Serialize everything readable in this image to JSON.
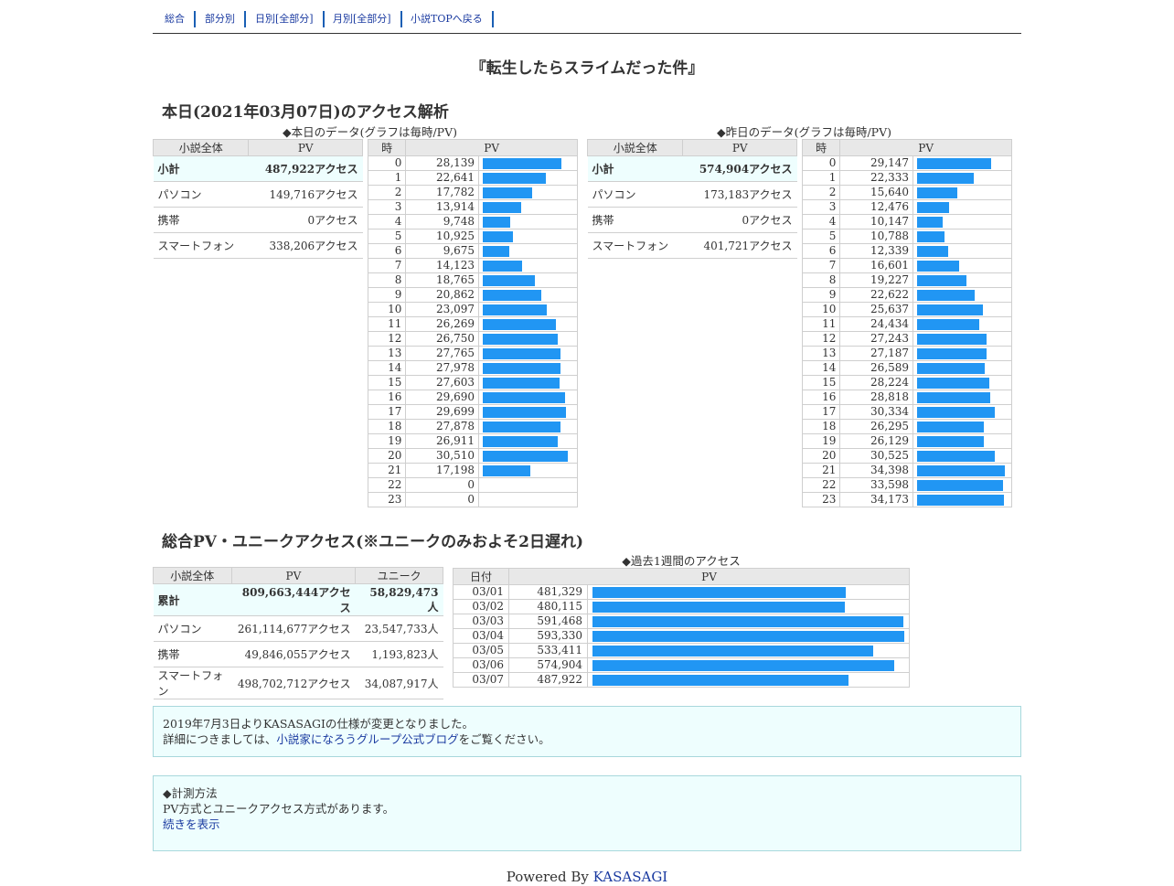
{
  "nav": {
    "items": [
      "総合",
      "部分別",
      "日別[全部分]",
      "月別[全部分]",
      "小説TOPへ戻る"
    ]
  },
  "novel_title": "『転生したらスライムだった件』",
  "today": {
    "section_title": "本日(2021年03月07日)のアクセス解析",
    "today_caption": "◆本日のデータ(グラフは毎時/PV)",
    "yesterday_caption": "◆昨日のデータ(グラフは毎時/PV)",
    "summary_headers": [
      "小説全体",
      "PV"
    ],
    "hourly_headers": [
      "時",
      "PV"
    ],
    "today_summary": [
      {
        "label": "小計",
        "value": "487,922アクセス"
      },
      {
        "label": "パソコン",
        "value": "149,716アクセス"
      },
      {
        "label": "携帯",
        "value": "0アクセス"
      },
      {
        "label": "スマートフォン",
        "value": "338,206アクセス"
      }
    ],
    "yesterday_summary": [
      {
        "label": "小計",
        "value": "574,904アクセス"
      },
      {
        "label": "パソコン",
        "value": "173,183アクセス"
      },
      {
        "label": "携帯",
        "value": "0アクセス"
      },
      {
        "label": "スマートフォン",
        "value": "401,721アクセス"
      }
    ]
  },
  "chart_data": [
    {
      "type": "bar",
      "title": "◆本日のデータ(グラフは毎時/PV)",
      "xlabel": "時",
      "ylabel": "PV",
      "categories": [
        "0",
        "1",
        "2",
        "3",
        "4",
        "5",
        "6",
        "7",
        "8",
        "9",
        "10",
        "11",
        "12",
        "13",
        "14",
        "15",
        "16",
        "17",
        "18",
        "19",
        "20",
        "21",
        "22",
        "23"
      ],
      "labels": [
        "28,139",
        "22,641",
        "17,782",
        "13,914",
        "9,748",
        "10,925",
        "9,675",
        "14,123",
        "18,765",
        "20,862",
        "23,097",
        "26,269",
        "26,750",
        "27,765",
        "27,978",
        "27,603",
        "29,690",
        "29,699",
        "27,878",
        "26,911",
        "30,510",
        "17,198",
        "0",
        "0"
      ],
      "values": [
        28139,
        22641,
        17782,
        13914,
        9748,
        10925,
        9675,
        14123,
        18765,
        20862,
        23097,
        26269,
        26750,
        27765,
        27978,
        27603,
        29690,
        29699,
        27878,
        26911,
        30510,
        17198,
        0,
        0
      ],
      "max": 31500
    },
    {
      "type": "bar",
      "title": "◆昨日のデータ(グラフは毎時/PV)",
      "xlabel": "時",
      "ylabel": "PV",
      "categories": [
        "0",
        "1",
        "2",
        "3",
        "4",
        "5",
        "6",
        "7",
        "8",
        "9",
        "10",
        "11",
        "12",
        "13",
        "14",
        "15",
        "16",
        "17",
        "18",
        "19",
        "20",
        "21",
        "22",
        "23"
      ],
      "labels": [
        "29,147",
        "22,333",
        "15,640",
        "12,476",
        "10,147",
        "10,788",
        "12,339",
        "16,601",
        "19,227",
        "22,622",
        "25,637",
        "24,434",
        "27,243",
        "27,187",
        "26,589",
        "28,224",
        "28,818",
        "30,334",
        "26,295",
        "26,129",
        "30,525",
        "34,398",
        "33,598",
        "34,173"
      ],
      "values": [
        29147,
        22333,
        15640,
        12476,
        10147,
        10788,
        12339,
        16601,
        19227,
        22622,
        25637,
        24434,
        27243,
        27187,
        26589,
        28224,
        28818,
        30334,
        26295,
        26129,
        30525,
        34398,
        33598,
        34173
      ],
      "max": 34398
    },
    {
      "type": "bar",
      "title": "◆過去1週間のアクセス",
      "xlabel": "日付",
      "ylabel": "PV",
      "categories": [
        "03/01",
        "03/02",
        "03/03",
        "03/04",
        "03/05",
        "03/06",
        "03/07"
      ],
      "labels": [
        "481,329",
        "480,115",
        "591,468",
        "593,330",
        "533,411",
        "574,904",
        "487,922"
      ],
      "values": [
        481329,
        480115,
        591468,
        593330,
        533411,
        574904,
        487922
      ],
      "max": 593330
    }
  ],
  "totals": {
    "section_title": "総合PV・ユニークアクセス(※ユニークのみおよそ2日遅れ)",
    "headers": [
      "小説全体",
      "PV",
      "ユニーク"
    ],
    "rows": [
      {
        "label": "累計",
        "pv": "809,663,444アクセス",
        "unique": "58,829,473人"
      },
      {
        "label": "パソコン",
        "pv": "261,114,677アクセス",
        "unique": "23,547,733人"
      },
      {
        "label": "携帯",
        "pv": "49,846,055アクセス",
        "unique": "1,193,823人"
      },
      {
        "label": "スマートフォン",
        "pv": "498,702,712アクセス",
        "unique": "34,087,917人"
      }
    ],
    "weekly_caption": "◆過去1週間のアクセス",
    "weekly_headers": [
      "日付",
      "PV"
    ]
  },
  "notice": {
    "line1": "2019年7月3日よりKASASAGIの仕様が変更となりました。",
    "line2_prefix": "詳細につきましては、",
    "line2_link": "小説家になろうグループ公式ブログ",
    "line2_suffix": "をご覧ください。"
  },
  "method": {
    "title": "◆計測方法",
    "text": "PV方式とユニークアクセス方式があります。",
    "link": "続きを表示"
  },
  "footer": {
    "prefix": "Powered By ",
    "link": "KASASAGI"
  },
  "colors": {
    "bar": "#2196f3",
    "link": "#1a3aa0",
    "box_bg": "#eefefe"
  }
}
